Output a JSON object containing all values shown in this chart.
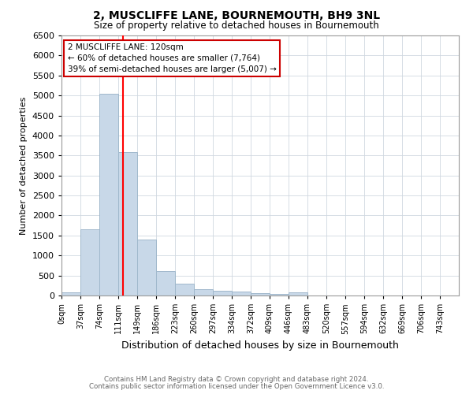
{
  "title": "2, MUSCLIFFE LANE, BOURNEMOUTH, BH9 3NL",
  "subtitle": "Size of property relative to detached houses in Bournemouth",
  "xlabel": "Distribution of detached houses by size in Bournemouth",
  "ylabel": "Number of detached properties",
  "bar_edges": [
    0,
    37,
    74,
    111,
    148,
    185,
    222,
    259,
    296,
    333,
    370,
    407,
    444,
    481,
    518,
    555,
    592,
    629,
    666,
    703,
    740,
    777
  ],
  "bar_values": [
    75,
    1650,
    5050,
    3580,
    1400,
    610,
    300,
    160,
    125,
    95,
    55,
    30,
    70,
    0,
    0,
    0,
    0,
    0,
    0,
    0,
    0
  ],
  "bar_color": "#c8d8e8",
  "bar_edge_color": "#a0b8cc",
  "red_line_x": 120,
  "annotation_text": "2 MUSCLIFFE LANE: 120sqm\n← 60% of detached houses are smaller (7,764)\n39% of semi-detached houses are larger (5,007) →",
  "annotation_box_color": "#ffffff",
  "annotation_box_edge_color": "#cc0000",
  "ylim": [
    0,
    6500
  ],
  "yticks": [
    0,
    500,
    1000,
    1500,
    2000,
    2500,
    3000,
    3500,
    4000,
    4500,
    5000,
    5500,
    6000,
    6500
  ],
  "xtick_labels": [
    "0sqm",
    "37sqm",
    "74sqm",
    "111sqm",
    "149sqm",
    "186sqm",
    "223sqm",
    "260sqm",
    "297sqm",
    "334sqm",
    "372sqm",
    "409sqm",
    "446sqm",
    "483sqm",
    "520sqm",
    "557sqm",
    "594sqm",
    "632sqm",
    "669sqm",
    "706sqm",
    "743sqm"
  ],
  "footnote1": "Contains HM Land Registry data © Crown copyright and database right 2024.",
  "footnote2": "Contains public sector information licensed under the Open Government Licence v3.0.",
  "background_color": "#ffffff",
  "grid_color": "#d0d8e0"
}
